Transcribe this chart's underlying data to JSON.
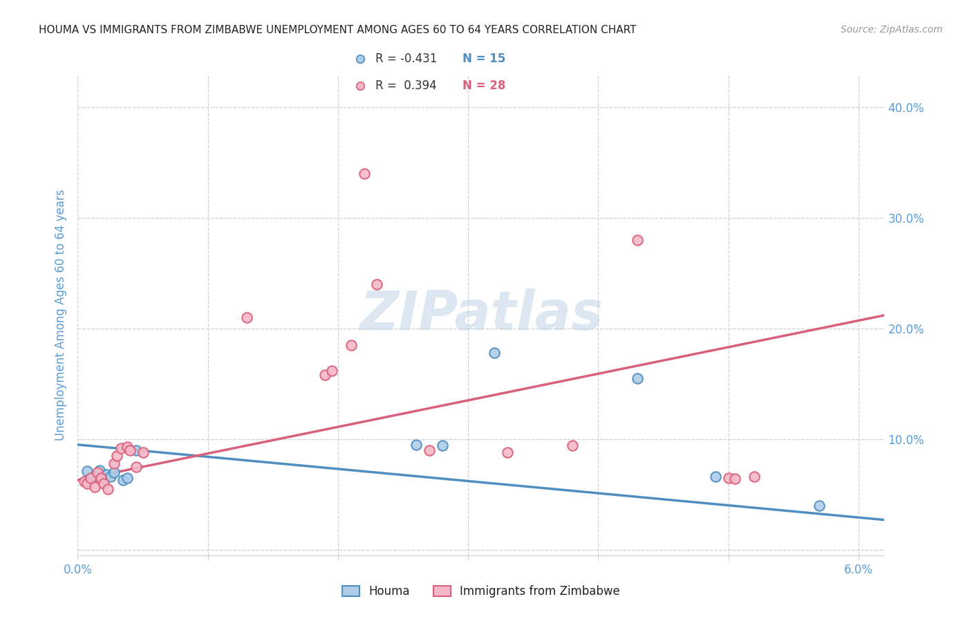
{
  "title": "HOUMA VS IMMIGRANTS FROM ZIMBABWE UNEMPLOYMENT AMONG AGES 60 TO 64 YEARS CORRELATION CHART",
  "source": "Source: ZipAtlas.com",
  "ylabel": "Unemployment Among Ages 60 to 64 years",
  "xlim": [
    0.0,
    0.062
  ],
  "ylim": [
    -0.005,
    0.43
  ],
  "xtick_vals": [
    0.0,
    0.01,
    0.02,
    0.03,
    0.04,
    0.05,
    0.06
  ],
  "ytick_vals": [
    0.0,
    0.1,
    0.2,
    0.3,
    0.4
  ],
  "houma_color": "#aecde8",
  "zimbabwe_color": "#f5b8c8",
  "houma_edge_color": "#4f8ec1",
  "zimbabwe_edge_color": "#d9607a",
  "line_houma_color": "#4f8ec1",
  "line_zimbabwe_color": "#d9607a",
  "legend_R_houma": "-0.431",
  "legend_N_houma": "15",
  "legend_R_zimbabwe": "0.394",
  "legend_N_zimbabwe": "28",
  "watermark": "ZIPatlas",
  "houma_x": [
    0.0007,
    0.0013,
    0.0017,
    0.0022,
    0.0025,
    0.0028,
    0.0035,
    0.0038,
    0.0045,
    0.026,
    0.028,
    0.032,
    0.043,
    0.049,
    0.057
  ],
  "houma_y": [
    0.071,
    0.067,
    0.072,
    0.068,
    0.066,
    0.07,
    0.063,
    0.065,
    0.09,
    0.095,
    0.094,
    0.178,
    0.155,
    0.066,
    0.04
  ],
  "zimbabwe_x": [
    0.0005,
    0.0007,
    0.001,
    0.0013,
    0.0015,
    0.0018,
    0.002,
    0.0023,
    0.0028,
    0.003,
    0.0033,
    0.0038,
    0.004,
    0.0045,
    0.005,
    0.013,
    0.019,
    0.0195,
    0.021,
    0.022,
    0.023,
    0.027,
    0.033,
    0.038,
    0.043,
    0.05,
    0.0505,
    0.052
  ],
  "zimbabwe_y": [
    0.062,
    0.06,
    0.065,
    0.057,
    0.07,
    0.065,
    0.06,
    0.055,
    0.078,
    0.085,
    0.092,
    0.093,
    0.09,
    0.075,
    0.088,
    0.21,
    0.158,
    0.162,
    0.185,
    0.34,
    0.24,
    0.09,
    0.088,
    0.094,
    0.28,
    0.065,
    0.064,
    0.066
  ],
  "houma_trend": [
    0.095,
    0.027
  ],
  "zimbabwe_trend": [
    0.063,
    0.212
  ],
  "background_color": "#ffffff",
  "grid_color": "#d0d0d0",
  "title_color": "#222222",
  "axis_color": "#5b9bd5",
  "marker_size": 110,
  "marker_lw": 1.5
}
